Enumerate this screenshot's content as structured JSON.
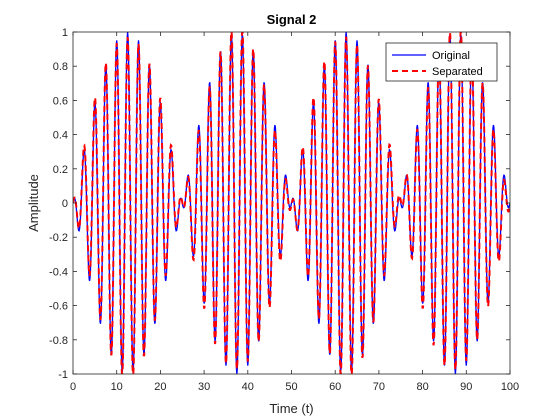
{
  "chart_data": {
    "type": "line",
    "title": "Signal 2",
    "xlabel": "Time (t)",
    "ylabel": "Amplitude",
    "xlim": [
      0,
      100
    ],
    "ylim": [
      -1,
      1
    ],
    "xticks": [
      0,
      10,
      20,
      30,
      40,
      50,
      60,
      70,
      80,
      90,
      100
    ],
    "yticks": [
      -1,
      -0.8,
      -0.6,
      -0.4,
      -0.2,
      0,
      0.2,
      0.4,
      0.6,
      0.8,
      1
    ],
    "xtick_labels": [
      "0",
      "10",
      "20",
      "30",
      "40",
      "50",
      "60",
      "70",
      "80",
      "90",
      "100"
    ],
    "ytick_labels": [
      "-1",
      "-0.8",
      "-0.6",
      "-0.4",
      "-0.2",
      "0",
      "0.2",
      "0.4",
      "0.6",
      "0.8",
      "1"
    ],
    "grid": false,
    "legend_position": "top-right",
    "series": [
      {
        "name": "Original",
        "color": "#0000ff",
        "style": "solid",
        "description_of_values": "amplitude-modulated sinusoid, carrier period ~2.5, envelope |sin(2*pi*t/50)|, range -1 to 1"
      },
      {
        "name": "Separated",
        "color": "#ff0000",
        "style": "dashed",
        "description_of_values": "overlays Original nearly exactly"
      }
    ],
    "model": {
      "carrier_period": 2.5,
      "envelope_period": 50,
      "x_start": 0,
      "x_end": 100,
      "samples": 1000
    }
  }
}
